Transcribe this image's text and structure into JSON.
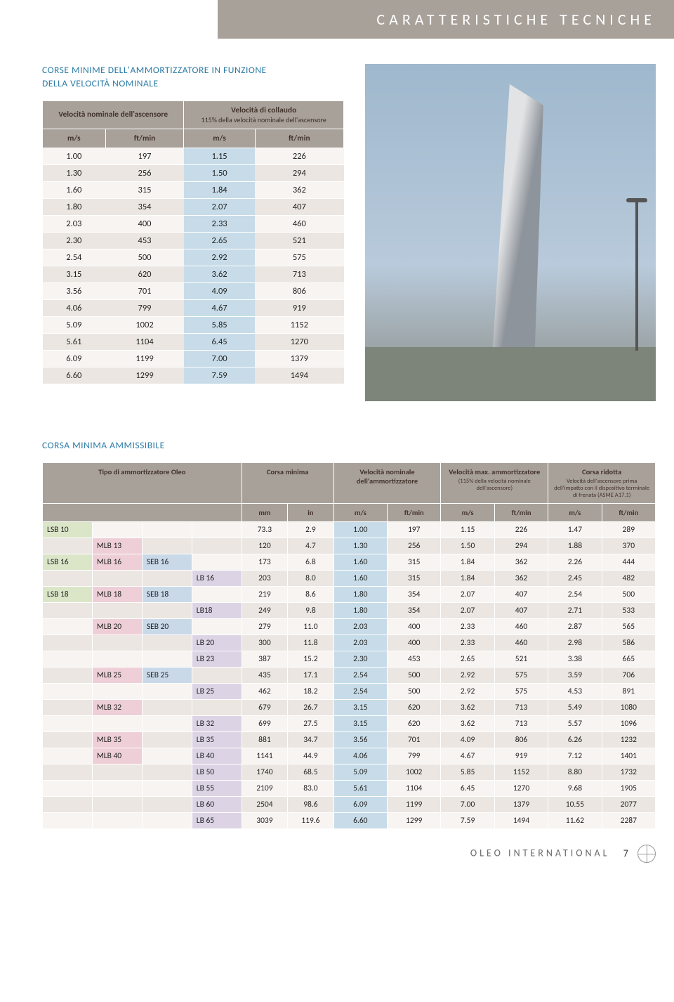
{
  "header": {
    "title": "CARATTERISTICHE TECNICHE"
  },
  "section1": {
    "title_line1": "CORSE MINIME DELL'AMMORTIZZATORE IN FUNZIONE",
    "title_line2": "DELLA VELOCITÀ NOMINALE"
  },
  "table1": {
    "head": {
      "col1": "Velocità nominale dell'ascensore",
      "col2": "Velocità di collaudo",
      "col2_sub": "115% della velocità nominale dell'ascensore",
      "u1": "m/s",
      "u2": "ft/min",
      "u3": "m/s",
      "u4": "ft/min"
    },
    "rows": [
      {
        "a": "1.00",
        "b": "197",
        "c": "1.15",
        "d": "226"
      },
      {
        "a": "1.30",
        "b": "256",
        "c": "1.50",
        "d": "294"
      },
      {
        "a": "1.60",
        "b": "315",
        "c": "1.84",
        "d": "362"
      },
      {
        "a": "1.80",
        "b": "354",
        "c": "2.07",
        "d": "407"
      },
      {
        "a": "2.03",
        "b": "400",
        "c": "2.33",
        "d": "460"
      },
      {
        "a": "2.30",
        "b": "453",
        "c": "2.65",
        "d": "521"
      },
      {
        "a": "2.54",
        "b": "500",
        "c": "2.92",
        "d": "575"
      },
      {
        "a": "3.15",
        "b": "620",
        "c": "3.62",
        "d": "713"
      },
      {
        "a": "3.56",
        "b": "701",
        "c": "4.09",
        "d": "806"
      },
      {
        "a": "4.06",
        "b": "799",
        "c": "4.67",
        "d": "919"
      },
      {
        "a": "5.09",
        "b": "1002",
        "c": "5.85",
        "d": "1152"
      },
      {
        "a": "5.61",
        "b": "1104",
        "c": "6.45",
        "d": "1270"
      },
      {
        "a": "6.09",
        "b": "1199",
        "c": "7.00",
        "d": "1379"
      },
      {
        "a": "6.60",
        "b": "1299",
        "c": "7.59",
        "d": "1494"
      }
    ]
  },
  "section2": {
    "title": "CORSA MINIMA AMMISSIBILE"
  },
  "table2": {
    "head": {
      "c1": "Tipo di ammortizzatore Oleo",
      "c2": "Corsa minima",
      "c3": "Velocità nominale dell'ammortizzatore",
      "c4": "Velocità max. ammortizzatore",
      "c4_sub": "(115% della velocità nominale dell'ascensore)",
      "c5": "Corsa ridotta",
      "c5_sub": "Velocità dell'ascensore prima dell'impatto con il dispositivo terminale di frenata (ASME A17.1)",
      "u_mm": "mm",
      "u_in": "in",
      "u_ms": "m/s",
      "u_ft": "ft/min"
    },
    "rows": [
      {
        "p": [
          "LSB 10",
          "",
          "",
          ""
        ],
        "cls": [
          "c-green",
          "",
          "",
          ""
        ],
        "mm": "73.3",
        "in": "2.9",
        "v1": "1.00",
        "v1f": "197",
        "v2": "1.15",
        "v2f": "226",
        "v3": "1.47",
        "v3f": "289"
      },
      {
        "p": [
          "",
          "MLB 13",
          "",
          ""
        ],
        "cls": [
          "",
          "c-pink",
          "",
          ""
        ],
        "mm": "120",
        "in": "4.7",
        "v1": "1.30",
        "v1f": "256",
        "v2": "1.50",
        "v2f": "294",
        "v3": "1.88",
        "v3f": "370"
      },
      {
        "p": [
          "LSB 16",
          "MLB 16",
          "SEB 16",
          ""
        ],
        "cls": [
          "c-green",
          "c-pink",
          "c-blue",
          ""
        ],
        "mm": "173",
        "in": "6.8",
        "v1": "1.60",
        "v1f": "315",
        "v2": "1.84",
        "v2f": "362",
        "v3": "2.26",
        "v3f": "444"
      },
      {
        "p": [
          "",
          "",
          "",
          "LB 16"
        ],
        "cls": [
          "",
          "",
          "",
          "c-purple"
        ],
        "mm": "203",
        "in": "8.0",
        "v1": "1.60",
        "v1f": "315",
        "v2": "1.84",
        "v2f": "362",
        "v3": "2.45",
        "v3f": "482"
      },
      {
        "p": [
          "LSB 18",
          "MLB 18",
          "SEB 18",
          ""
        ],
        "cls": [
          "c-green",
          "c-pink",
          "c-blue",
          ""
        ],
        "mm": "219",
        "in": "8.6",
        "v1": "1.80",
        "v1f": "354",
        "v2": "2.07",
        "v2f": "407",
        "v3": "2.54",
        "v3f": "500"
      },
      {
        "p": [
          "",
          "",
          "",
          "LB18"
        ],
        "cls": [
          "",
          "",
          "",
          "c-purple"
        ],
        "mm": "249",
        "in": "9.8",
        "v1": "1.80",
        "v1f": "354",
        "v2": "2.07",
        "v2f": "407",
        "v3": "2.71",
        "v3f": "533"
      },
      {
        "p": [
          "",
          "MLB 20",
          "SEB 20",
          ""
        ],
        "cls": [
          "",
          "c-pink",
          "c-blue",
          ""
        ],
        "mm": "279",
        "in": "11.0",
        "v1": "2.03",
        "v1f": "400",
        "v2": "2.33",
        "v2f": "460",
        "v3": "2.87",
        "v3f": "565"
      },
      {
        "p": [
          "",
          "",
          "",
          "LB 20"
        ],
        "cls": [
          "",
          "",
          "",
          "c-purple"
        ],
        "mm": "300",
        "in": "11.8",
        "v1": "2.03",
        "v1f": "400",
        "v2": "2.33",
        "v2f": "460",
        "v3": "2.98",
        "v3f": "586"
      },
      {
        "p": [
          "",
          "",
          "",
          "LB 23"
        ],
        "cls": [
          "",
          "",
          "",
          "c-purple"
        ],
        "mm": "387",
        "in": "15.2",
        "v1": "2.30",
        "v1f": "453",
        "v2": "2.65",
        "v2f": "521",
        "v3": "3.38",
        "v3f": "665"
      },
      {
        "p": [
          "",
          "MLB 25",
          "SEB 25",
          ""
        ],
        "cls": [
          "",
          "c-pink",
          "c-blue",
          ""
        ],
        "mm": "435",
        "in": "17.1",
        "v1": "2.54",
        "v1f": "500",
        "v2": "2.92",
        "v2f": "575",
        "v3": "3.59",
        "v3f": "706"
      },
      {
        "p": [
          "",
          "",
          "",
          "LB 25"
        ],
        "cls": [
          "",
          "",
          "",
          "c-purple"
        ],
        "mm": "462",
        "in": "18.2",
        "v1": "2.54",
        "v1f": "500",
        "v2": "2.92",
        "v2f": "575",
        "v3": "4.53",
        "v3f": "891"
      },
      {
        "p": [
          "",
          "MLB 32",
          "",
          ""
        ],
        "cls": [
          "",
          "c-pink",
          "",
          ""
        ],
        "mm": "679",
        "in": "26.7",
        "v1": "3.15",
        "v1f": "620",
        "v2": "3.62",
        "v2f": "713",
        "v3": "5.49",
        "v3f": "1080"
      },
      {
        "p": [
          "",
          "",
          "",
          "LB 32"
        ],
        "cls": [
          "",
          "",
          "",
          "c-purple"
        ],
        "mm": "699",
        "in": "27.5",
        "v1": "3.15",
        "v1f": "620",
        "v2": "3.62",
        "v2f": "713",
        "v3": "5.57",
        "v3f": "1096"
      },
      {
        "p": [
          "",
          "MLB 35",
          "",
          "LB 35"
        ],
        "cls": [
          "",
          "c-pink",
          "",
          "c-purple"
        ],
        "mm": "881",
        "in": "34.7",
        "v1": "3.56",
        "v1f": "701",
        "v2": "4.09",
        "v2f": "806",
        "v3": "6.26",
        "v3f": "1232"
      },
      {
        "p": [
          "",
          "MLB 40",
          "",
          "LB 40"
        ],
        "cls": [
          "",
          "c-pink",
          "",
          "c-purple"
        ],
        "mm": "1141",
        "in": "44.9",
        "v1": "4.06",
        "v1f": "799",
        "v2": "4.67",
        "v2f": "919",
        "v3": "7.12",
        "v3f": "1401"
      },
      {
        "p": [
          "",
          "",
          "",
          "LB 50"
        ],
        "cls": [
          "",
          "",
          "",
          "c-purple"
        ],
        "mm": "1740",
        "in": "68.5",
        "v1": "5.09",
        "v1f": "1002",
        "v2": "5.85",
        "v2f": "1152",
        "v3": "8.80",
        "v3f": "1732"
      },
      {
        "p": [
          "",
          "",
          "",
          "LB 55"
        ],
        "cls": [
          "",
          "",
          "",
          "c-purple"
        ],
        "mm": "2109",
        "in": "83.0",
        "v1": "5.61",
        "v1f": "1104",
        "v2": "6.45",
        "v2f": "1270",
        "v3": "9.68",
        "v3f": "1905"
      },
      {
        "p": [
          "",
          "",
          "",
          "LB 60"
        ],
        "cls": [
          "",
          "",
          "",
          "c-purple"
        ],
        "mm": "2504",
        "in": "98.6",
        "v1": "6.09",
        "v1f": "1199",
        "v2": "7.00",
        "v2f": "1379",
        "v3": "10.55",
        "v3f": "2077"
      },
      {
        "p": [
          "",
          "",
          "",
          "LB 65"
        ],
        "cls": [
          "",
          "",
          "",
          "c-purple"
        ],
        "mm": "3039",
        "in": "119.6",
        "v1": "6.60",
        "v1f": "1299",
        "v2": "7.59",
        "v2f": "1494",
        "v3": "11.62",
        "v3f": "2287"
      }
    ]
  },
  "footer": {
    "brand": "OLEO INTERNATIONAL",
    "page": "7"
  }
}
